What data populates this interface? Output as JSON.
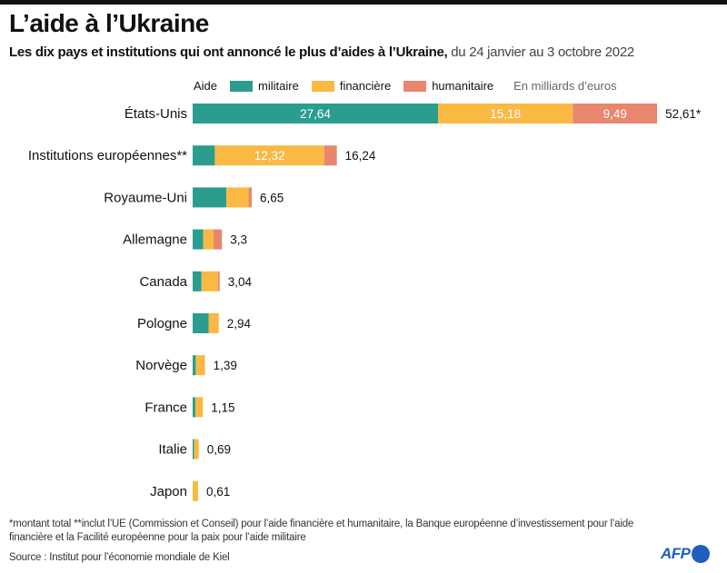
{
  "header": {
    "title": "L’aide à l’Ukraine",
    "subtitle_bold": "Les dix pays et institutions qui ont annoncé le plus d’aides à l’Ukraine,",
    "subtitle_light": " du 24 janvier au 3 octobre 2022"
  },
  "legend": {
    "prefix": "Aide",
    "unit": "En milliards d’euros"
  },
  "chart_data": {
    "type": "bar",
    "orientation": "horizontal",
    "stacked": true,
    "title": "L’aide à l’Ukraine",
    "xlabel": "En milliards d’euros",
    "ylabel": "",
    "categories": [
      "États-Unis",
      "Institutions européennes**",
      "Royaume-Uni",
      "Allemagne",
      "Canada",
      "Pologne",
      "Norvège",
      "France",
      "Italie",
      "Japon"
    ],
    "series": [
      {
        "name": "militaire",
        "color": "#2a9d8f",
        "values": [
          27.64,
          2.5,
          3.8,
          1.2,
          1.0,
          1.8,
          0.35,
          0.3,
          0.15,
          0
        ]
      },
      {
        "name": "financière",
        "color": "#f9b943",
        "values": [
          15.18,
          12.32,
          2.5,
          1.15,
          1.85,
          1.14,
          1.04,
          0.85,
          0.54,
          0.61
        ]
      },
      {
        "name": "humanitaire",
        "color": "#e8866e",
        "values": [
          9.49,
          1.42,
          0.35,
          0.95,
          0.19,
          0,
          0,
          0,
          0,
          0
        ]
      }
    ],
    "segment_labels": [
      {
        "category": "États-Unis",
        "series": "militaire",
        "text": "27,64"
      },
      {
        "category": "États-Unis",
        "series": "financière",
        "text": "15,18"
      },
      {
        "category": "États-Unis",
        "series": "humanitaire",
        "text": "9,49"
      },
      {
        "category": "Institutions européennes**",
        "series": "financière",
        "text": "12,32"
      }
    ],
    "total_labels": [
      "52,61*",
      "16,24",
      "6,65",
      "3,3",
      "3,04",
      "2,94",
      "1,39",
      "1,15",
      "0,69",
      "0,61"
    ],
    "xlim": [
      0,
      52.61
    ],
    "grid": false,
    "legend_position": "top"
  },
  "footer": {
    "note": "*montant total    **inclut l’UE (Commission et Conseil) pour l’aide financière et humanitaire, la Banque européenne d’investissement pour l’aide financière et la Facilité européenne pour la paix pour l’aide militaire",
    "source": "Source : Institut pour l’économie mondiale de Kiel",
    "logo_text": "AFP"
  }
}
